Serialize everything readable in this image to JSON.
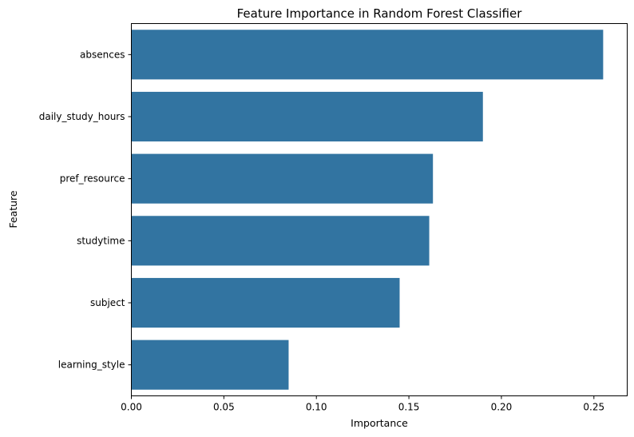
{
  "chart_data": {
    "type": "bar",
    "orientation": "horizontal",
    "title": "Feature Importance in Random Forest Classifier",
    "xlabel": "Importance",
    "ylabel": "Feature",
    "categories": [
      "absences",
      "daily_study_hours",
      "pref_resource",
      "studytime",
      "subject",
      "learning_style"
    ],
    "values": [
      0.255,
      0.19,
      0.163,
      0.161,
      0.145,
      0.085
    ],
    "xlim": [
      0,
      0.268
    ],
    "xticks": [
      0.0,
      0.05,
      0.1,
      0.15,
      0.2,
      0.25
    ],
    "xtick_labels": [
      "0.00",
      "0.05",
      "0.10",
      "0.15",
      "0.20",
      "0.25"
    ],
    "bar_color": "#3274a1",
    "grid": false
  }
}
